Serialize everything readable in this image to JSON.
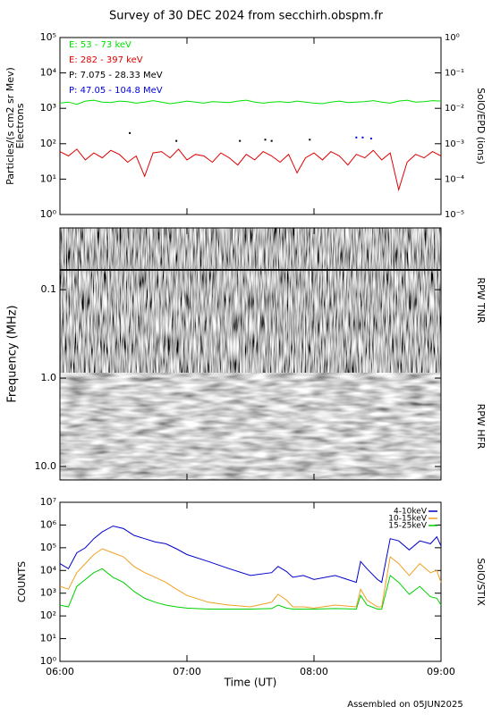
{
  "title": "Survey of 30 DEC 2024 from secchirh.obspm.fr",
  "footer": "Assembled on 05JUN2025",
  "chart_data": [
    {
      "type": "line",
      "ylabel": [
        "Particles/(s cm2 sr Mev)",
        "Electrons"
      ],
      "y2label": "SolO/EPD (ions)",
      "ylog": true,
      "xlim": [
        0,
        180
      ],
      "xticks": [
        0,
        60,
        120,
        180
      ],
      "ylim": [
        1,
        100000
      ],
      "yticks": [
        {
          "value": 1,
          "label": "10⁰"
        },
        {
          "value": 10,
          "label": "10¹"
        },
        {
          "value": 100,
          "label": "10²"
        },
        {
          "value": 1000,
          "label": "10³"
        },
        {
          "value": 10000,
          "label": "10⁴"
        },
        {
          "value": 100000,
          "label": "10⁵"
        }
      ],
      "y2lim": [
        1e-05,
        1
      ],
      "y2ticks": [
        {
          "value": 1e-05,
          "label": "10⁻⁵"
        },
        {
          "value": 0.0001,
          "label": "10⁻⁴"
        },
        {
          "value": 0.001,
          "label": "10⁻³"
        },
        {
          "value": 0.01,
          "label": "10⁻²"
        },
        {
          "value": 0.1,
          "label": "10⁻¹"
        },
        {
          "value": 1,
          "label": "10⁰"
        }
      ],
      "series": [
        {
          "name": "E: 53 - 73 keV",
          "color": "#00e000",
          "mode": "line",
          "x": [
            0,
            4,
            8,
            12,
            16,
            20,
            24,
            28,
            32,
            36,
            40,
            44,
            48,
            52,
            56,
            60,
            64,
            68,
            72,
            76,
            80,
            84,
            88,
            92,
            96,
            100,
            104,
            108,
            112,
            116,
            120,
            124,
            128,
            132,
            136,
            140,
            144,
            148,
            152,
            156,
            160,
            164,
            168,
            172,
            176,
            180
          ],
          "values": [
            1400,
            1500,
            1300,
            1600,
            1700,
            1500,
            1450,
            1600,
            1550,
            1400,
            1500,
            1650,
            1500,
            1350,
            1450,
            1600,
            1500,
            1400,
            1550,
            1500,
            1450,
            1600,
            1700,
            1500,
            1400,
            1500,
            1550,
            1450,
            1600,
            1500,
            1400,
            1350,
            1500,
            1600,
            1450,
            1500,
            1550,
            1650,
            1500,
            1400,
            1600,
            1700,
            1500,
            1550,
            1650,
            1600
          ]
        },
        {
          "name": "E: 282 - 397 keV",
          "color": "#e00000",
          "mode": "line",
          "x": [
            0,
            4,
            8,
            12,
            16,
            20,
            24,
            28,
            32,
            36,
            40,
            44,
            48,
            52,
            56,
            60,
            64,
            68,
            72,
            76,
            80,
            84,
            88,
            92,
            96,
            100,
            104,
            108,
            112,
            116,
            120,
            124,
            128,
            132,
            136,
            140,
            144,
            148,
            152,
            156,
            160,
            164,
            168,
            172,
            176,
            180
          ],
          "values": [
            60,
            45,
            70,
            35,
            55,
            40,
            65,
            50,
            30,
            45,
            12,
            55,
            60,
            40,
            70,
            35,
            50,
            45,
            30,
            55,
            40,
            25,
            50,
            35,
            60,
            45,
            30,
            50,
            15,
            40,
            55,
            35,
            60,
            45,
            25,
            50,
            40,
            65,
            35,
            55,
            5,
            30,
            50,
            40,
            60,
            45
          ]
        },
        {
          "name": "P: 7.075 - 28.33 MeV",
          "color": "#000000",
          "mode": "points",
          "axis": "y2",
          "x": [
            33,
            55,
            85,
            97,
            100,
            118
          ],
          "values": [
            0.002,
            0.0012,
            0.0012,
            0.0013,
            0.0012,
            0.0013
          ]
        },
        {
          "name": "P: 47.05 - 104.8 MeV",
          "color": "#0000e0",
          "mode": "points",
          "axis": "y2",
          "x": [
            140,
            143,
            147
          ],
          "values": [
            0.0015,
            0.0015,
            0.0014
          ]
        }
      ]
    },
    {
      "type": "spectrogram",
      "ylabel": "Frequency (MHz)",
      "panel_labels": [
        "RPW TNR",
        "RPW HFR"
      ],
      "ylog": true,
      "y_reversed": true,
      "xlim": [
        0,
        180
      ],
      "xticks": [
        0,
        60,
        120,
        180
      ],
      "ylim": [
        0.02,
        14.2
      ],
      "yticks": [
        0.1,
        {
          "value": 1,
          "label": "1.0"
        },
        {
          "value": 10,
          "label": "10.0"
        }
      ]
    },
    {
      "type": "line",
      "ylabel": "COUNTS",
      "y2label": "SolO/STIX",
      "xlabel": "Time (UT)",
      "ylog": true,
      "legend": "upper right",
      "xlim": [
        0,
        180
      ],
      "xticks": [
        {
          "value": 0,
          "label": "06:00"
        },
        {
          "value": 60,
          "label": "07:00"
        },
        {
          "value": 120,
          "label": "08:00"
        },
        {
          "value": 180,
          "label": "09:00"
        }
      ],
      "ylim": [
        1,
        10000000
      ],
      "yticks": [
        {
          "value": 1,
          "label": "10⁰"
        },
        {
          "value": 10,
          "label": "10¹"
        },
        {
          "value": 100,
          "label": "10²"
        },
        {
          "value": 1000,
          "label": "10³"
        },
        {
          "value": 10000,
          "label": "10⁴"
        },
        {
          "value": 100000,
          "label": "10⁵"
        },
        {
          "value": 1000000,
          "label": "10⁶"
        },
        {
          "value": 10000000,
          "label": "10⁷"
        }
      ],
      "series": [
        {
          "name": "4-10keV",
          "color": "#0000cc",
          "mode": "line",
          "x": [
            0,
            4,
            8,
            12,
            16,
            20,
            25,
            30,
            35,
            40,
            45,
            50,
            55,
            60,
            70,
            80,
            90,
            100,
            103,
            107,
            110,
            115,
            120,
            130,
            140,
            142,
            145,
            150,
            152,
            156,
            160,
            165,
            170,
            175,
            178,
            180
          ],
          "values": [
            20000,
            12000,
            60000,
            100000,
            250000,
            500000,
            900000,
            700000,
            350000,
            250000,
            180000,
            150000,
            90000,
            50000,
            25000,
            12000,
            6000,
            8000,
            15000,
            9000,
            5000,
            6000,
            4000,
            6000,
            3000,
            25000,
            12000,
            4000,
            3000,
            250000,
            200000,
            80000,
            200000,
            150000,
            300000,
            120000
          ]
        },
        {
          "name": "10-15keV",
          "color": "#f0a020",
          "mode": "line",
          "x": [
            0,
            4,
            8,
            12,
            16,
            20,
            25,
            30,
            35,
            40,
            45,
            50,
            55,
            60,
            70,
            80,
            90,
            100,
            103,
            107,
            110,
            115,
            120,
            130,
            140,
            142,
            145,
            150,
            152,
            156,
            160,
            165,
            170,
            175,
            178,
            180
          ],
          "values": [
            2000,
            1500,
            8000,
            20000,
            50000,
            90000,
            60000,
            40000,
            15000,
            8000,
            5000,
            3000,
            1500,
            800,
            400,
            300,
            250,
            400,
            900,
            500,
            250,
            250,
            220,
            300,
            250,
            1500,
            500,
            250,
            250,
            40000,
            20000,
            6000,
            20000,
            8000,
            10000,
            3000
          ]
        },
        {
          "name": "15-25keV",
          "color": "#00d000",
          "mode": "line",
          "x": [
            0,
            4,
            8,
            12,
            16,
            20,
            25,
            30,
            35,
            40,
            45,
            50,
            55,
            60,
            70,
            80,
            90,
            100,
            103,
            107,
            110,
            115,
            120,
            130,
            140,
            142,
            145,
            150,
            152,
            156,
            160,
            165,
            170,
            175,
            178,
            180
          ],
          "values": [
            300,
            250,
            2000,
            4000,
            8000,
            12000,
            5000,
            3000,
            1200,
            600,
            400,
            300,
            250,
            220,
            200,
            200,
            200,
            210,
            300,
            220,
            200,
            200,
            200,
            210,
            200,
            800,
            300,
            200,
            200,
            6000,
            3000,
            900,
            2000,
            700,
            600,
            300
          ]
        }
      ]
    }
  ]
}
